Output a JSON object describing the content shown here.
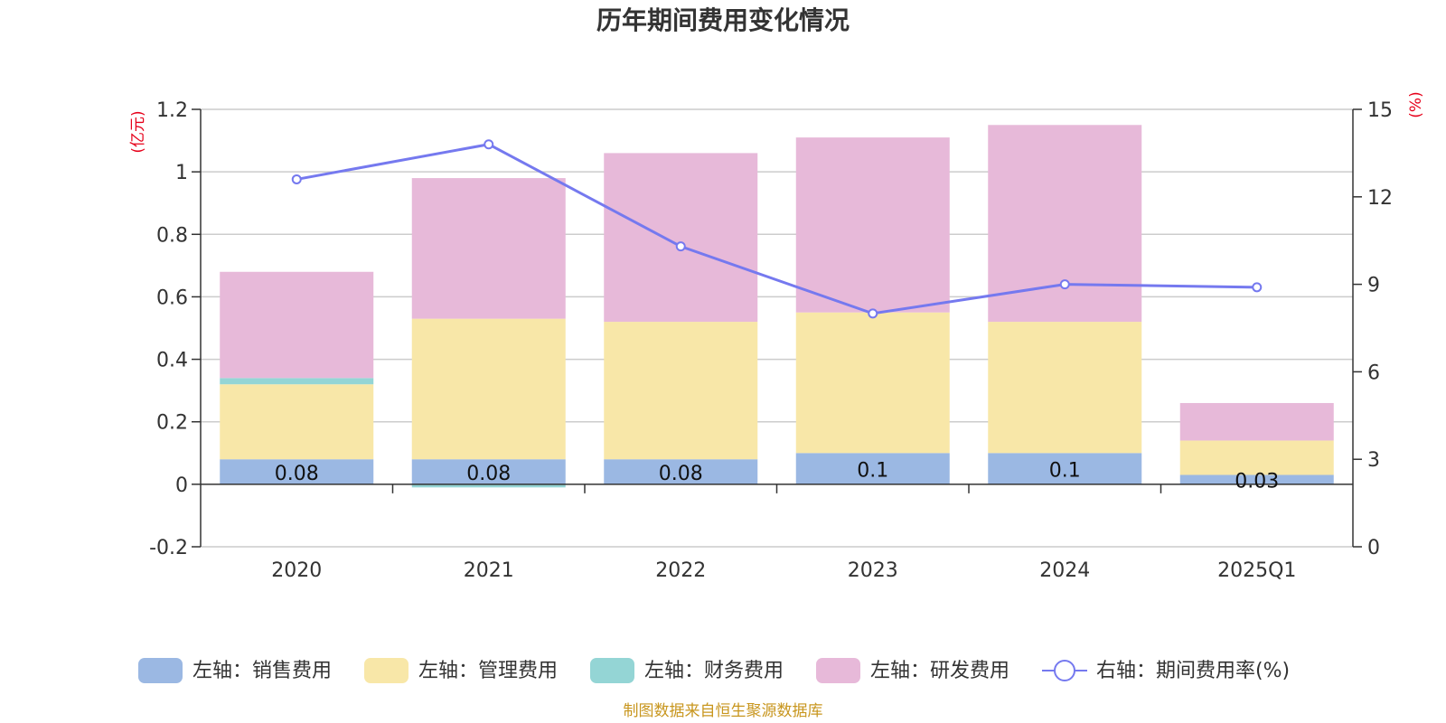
{
  "chart_data": {
    "type": "bar",
    "title": "历年期间费用变化情况",
    "categories": [
      "2020",
      "2021",
      "2022",
      "2023",
      "2024",
      "2025Q1"
    ],
    "series": [
      {
        "name": "左轴：销售费用",
        "axis": "left",
        "color": "#9bb8e3",
        "values": [
          0.08,
          0.08,
          0.08,
          0.1,
          0.1,
          0.03
        ],
        "data_labels": [
          "0.08",
          "0.08",
          "0.08",
          "0.1",
          "0.1",
          "0.03"
        ]
      },
      {
        "name": "左轴：管理费用",
        "axis": "left",
        "color": "#f8e7a8",
        "values": [
          0.24,
          0.45,
          0.44,
          0.45,
          0.42,
          0.11
        ]
      },
      {
        "name": "左轴：财务费用",
        "axis": "left",
        "color": "#94d5d5",
        "values": [
          0.02,
          -0.01,
          0.0,
          0.0,
          0.0,
          0.0
        ]
      },
      {
        "name": "左轴：研发费用",
        "axis": "left",
        "color": "#e7b9d9",
        "values": [
          0.34,
          0.45,
          0.54,
          0.56,
          0.63,
          0.12
        ]
      },
      {
        "name": "右轴：期间费用率(%)",
        "axis": "right",
        "type": "line",
        "color": "#7579ef",
        "values": [
          12.6,
          13.8,
          10.3,
          8.0,
          9.0,
          8.9
        ]
      }
    ],
    "y_left": {
      "unit": "(亿元)",
      "ylim": [
        -0.2,
        1.2
      ],
      "ticks": [
        "-0.2",
        "0",
        "0.2",
        "0.4",
        "0.6",
        "0.8",
        "1",
        "1.2"
      ]
    },
    "y_right": {
      "unit": "(%)",
      "ylim": [
        0,
        15
      ],
      "ticks": [
        "0",
        "3",
        "6",
        "9",
        "12",
        "15"
      ]
    },
    "grid": true,
    "legend_position": "bottom"
  },
  "source_note": "制图数据来自恒生聚源数据库"
}
